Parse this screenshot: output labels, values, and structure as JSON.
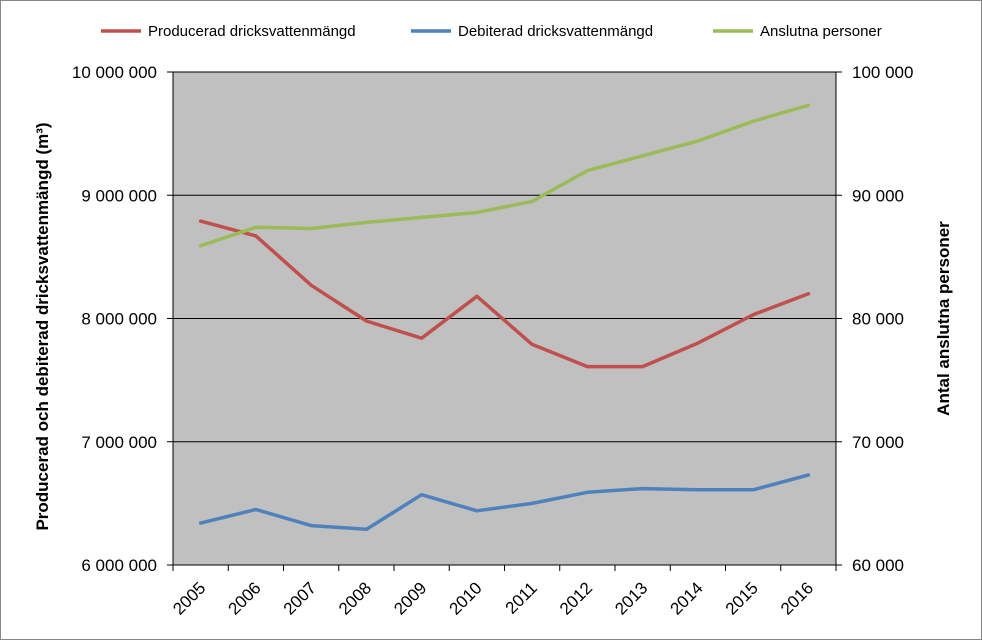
{
  "chart_data": {
    "type": "line",
    "categories": [
      "2005",
      "2006",
      "2007",
      "2008",
      "2009",
      "2010",
      "2011",
      "2012",
      "2013",
      "2014",
      "2015",
      "2016"
    ],
    "series": [
      {
        "name": "Producerad dricksvattenmängd",
        "axis": "left",
        "color": "#c0504d",
        "values": [
          8790000,
          8670000,
          8270000,
          7980000,
          7840000,
          8180000,
          7790000,
          7610000,
          7610000,
          7800000,
          8030000,
          8200000
        ]
      },
      {
        "name": "Debiterad dricksvattenmängd",
        "axis": "left",
        "color": "#4f81bd",
        "values": [
          6340000,
          6450000,
          6320000,
          6290000,
          6570000,
          6440000,
          6500000,
          6590000,
          6620000,
          6610000,
          6610000,
          6730000
        ]
      },
      {
        "name": "Anslutna personer",
        "axis": "right",
        "color": "#9bbb59",
        "values": [
          85900,
          87400,
          87300,
          87800,
          88200,
          88600,
          89500,
          92000,
          93200,
          94400,
          96000,
          97300
        ]
      }
    ],
    "y_left": {
      "label": "Producerad och debiterad dricksvattenmängd (m³)",
      "range": [
        6000000,
        10000000
      ],
      "ticks": [
        6000000,
        7000000,
        8000000,
        9000000,
        10000000
      ],
      "tick_labels": [
        "6 000 000",
        "7 000 000",
        "8 000 000",
        "9 000 000",
        "10 000 000"
      ]
    },
    "y_right": {
      "label": "Antal anslutna personer",
      "range": [
        60000,
        100000
      ],
      "ticks": [
        60000,
        70000,
        80000,
        90000,
        100000
      ],
      "tick_labels": [
        "60 000",
        "70 000",
        "80 000",
        "90 000",
        "100 000"
      ]
    },
    "legend_position": "top",
    "grid": true,
    "plot_background": "#c0c0c0"
  }
}
